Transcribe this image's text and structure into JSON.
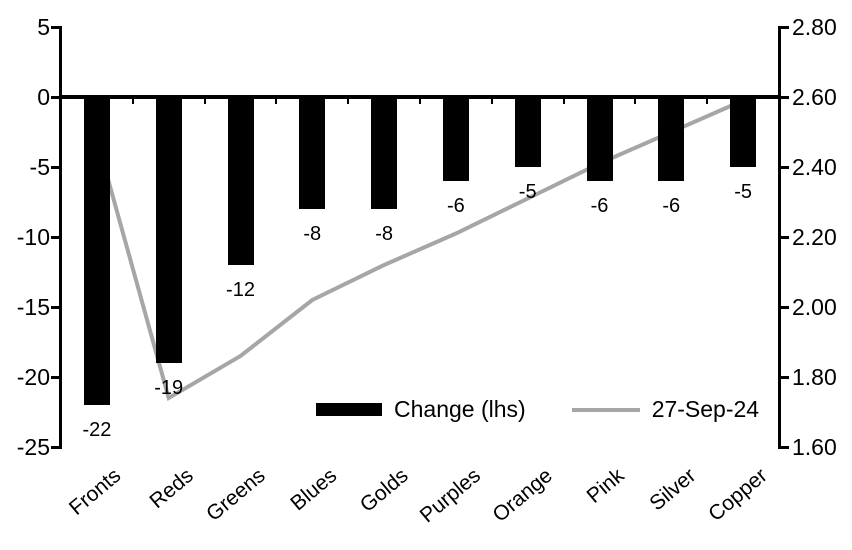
{
  "chart_data": {
    "type": "bar",
    "combo": true,
    "categories": [
      "Fronts",
      "Reds",
      "Greens",
      "Blues",
      "Golds",
      "Purples",
      "Orange",
      "Pink",
      "Silver",
      "Copper"
    ],
    "series": [
      {
        "name": "Change (lhs)",
        "type": "bar",
        "axis": "left",
        "color": "#000000",
        "values": [
          -22,
          -19,
          -12,
          -8,
          -8,
          -6,
          -5,
          -6,
          -6,
          -5
        ],
        "data_labels": [
          "-22",
          "-19",
          "-12",
          "-8",
          "-8",
          "-6",
          "-5",
          "-6",
          "-6",
          "-5"
        ]
      },
      {
        "name": "27-Sep-24",
        "type": "line",
        "axis": "right",
        "color": "#a6a6a6",
        "values": [
          2.48,
          1.74,
          1.86,
          2.02,
          2.12,
          2.21,
          2.31,
          2.41,
          2.5,
          2.59
        ]
      }
    ],
    "left_axis": {
      "min": -25,
      "max": 5,
      "tick_step": 5,
      "tick_labels": [
        "5",
        "0",
        "-5",
        "-10",
        "-15",
        "-20",
        "-25"
      ]
    },
    "right_axis": {
      "min": 1.6,
      "max": 2.8,
      "tick_step": 0.2,
      "tick_labels": [
        "2.80",
        "2.60",
        "2.40",
        "2.20",
        "2.00",
        "1.80",
        "1.60"
      ]
    },
    "legend": [
      {
        "label": "Change (lhs)",
        "swatch": "bar",
        "color": "#000000"
      },
      {
        "label": "27-Sep-24",
        "swatch": "line",
        "color": "#a6a6a6"
      }
    ],
    "grid": "off",
    "legend_position": "bottom-center-inside",
    "background": "#ffffff"
  }
}
